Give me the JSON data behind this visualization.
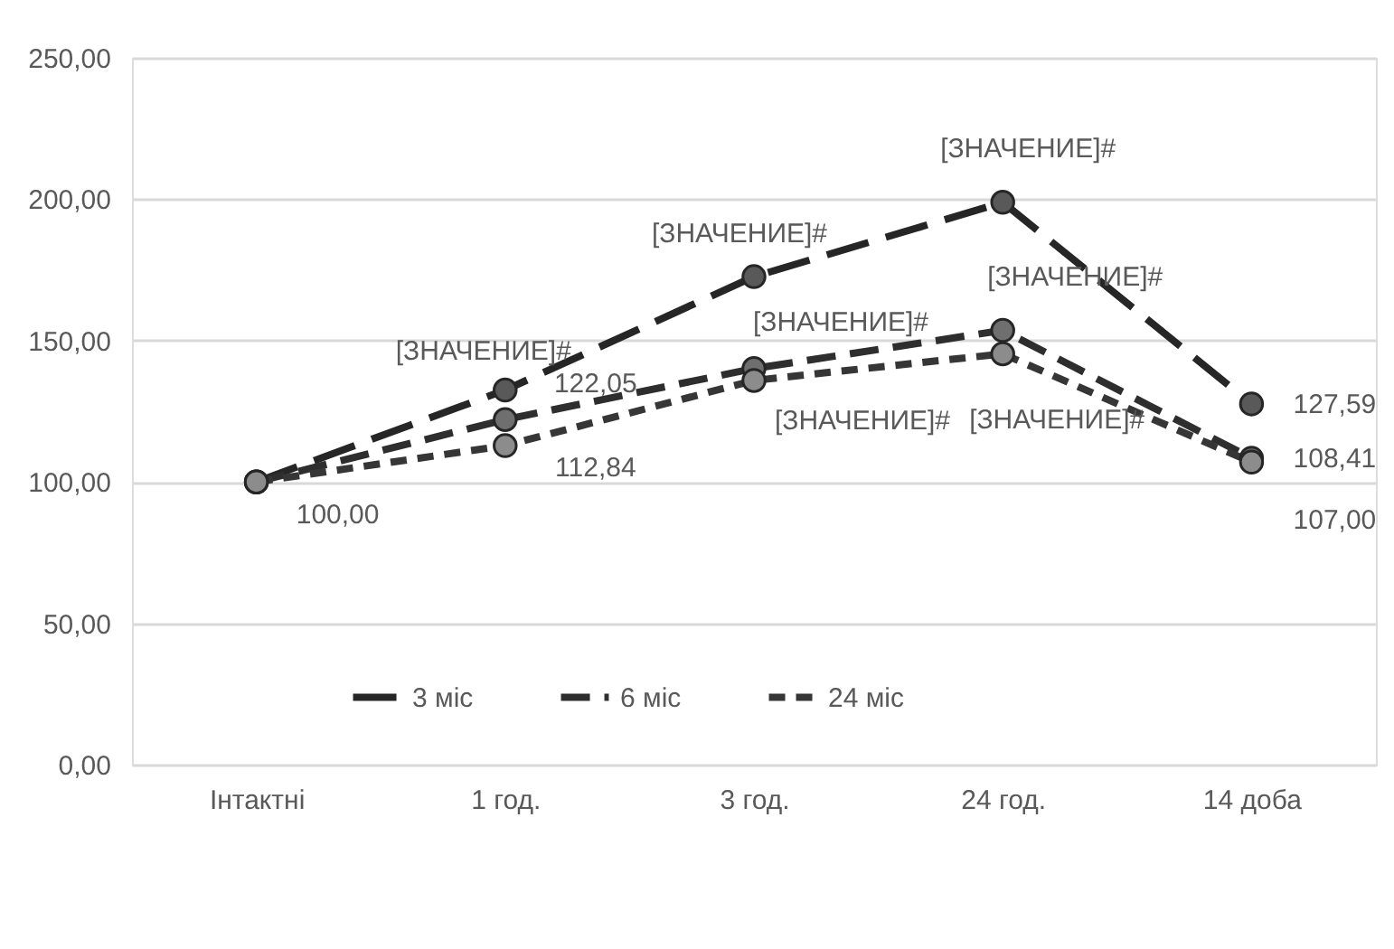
{
  "chart_data": {
    "type": "line",
    "categories": [
      "Інтактні",
      "1 год.",
      "3 год.",
      "24 год.",
      "14 доба"
    ],
    "series": [
      {
        "name": "3 міс",
        "color": "#262626",
        "values": [
          100.0,
          132.5,
          172.6,
          198.9,
          127.59
        ],
        "value_labels": [
          "100,00",
          "[ЗНАЧЕНИЕ]#",
          "[ЗНАЧЕНИЕ]#",
          "[ЗНАЧЕНИЕ]#",
          "127,59"
        ]
      },
      {
        "name": "6 міс",
        "color": "#2e2e2e",
        "values": [
          100.0,
          122.05,
          140.1,
          153.6,
          108.41
        ],
        "value_labels": [
          null,
          "122,05",
          "[ЗНАЧЕНИЕ]#",
          "[ЗНАЧЕНИЕ]#",
          "108,41"
        ]
      },
      {
        "name": "24 міс",
        "color": "#363636",
        "values": [
          100.0,
          112.84,
          135.9,
          145.3,
          107.0
        ],
        "value_labels": [
          null,
          "112,84",
          "[ЗНАЧЕНИЕ]#",
          "[ЗНАЧЕНИЕ]#",
          "107,00"
        ]
      }
    ],
    "ylim": [
      0,
      250
    ],
    "yticks": [
      {
        "value": 0,
        "label": "0,00"
      },
      {
        "value": 50,
        "label": "50,00"
      },
      {
        "value": 100,
        "label": "100,00"
      },
      {
        "value": 150,
        "label": "150,00"
      },
      {
        "value": 200,
        "label": "200,00"
      },
      {
        "value": 250,
        "label": "250,00"
      }
    ],
    "grid": "y",
    "legend": "bottom",
    "marker": "circle",
    "line_style": "dashed"
  }
}
